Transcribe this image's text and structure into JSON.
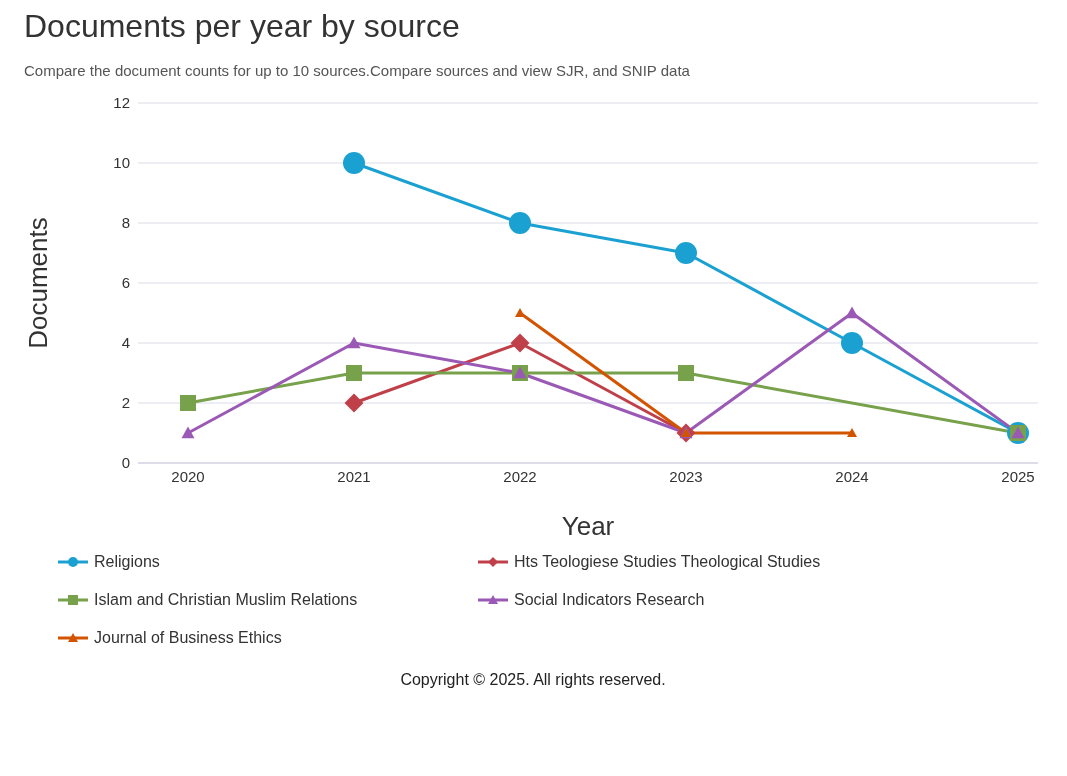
{
  "chart_data": {
    "type": "line",
    "title": "Documents per year by source",
    "subtitle": "Compare the document counts for up to 10 sources.Compare sources and view SJR, and SNIP data",
    "xlabel": "Year",
    "ylabel": "Documents",
    "categories": [
      "2020",
      "2021",
      "2022",
      "2023",
      "2024",
      "2025"
    ],
    "series": [
      {
        "name": "Religions",
        "color": "#1ba1d1",
        "marker": "circle",
        "values": [
          null,
          10,
          8,
          7,
          4,
          1
        ]
      },
      {
        "name": "Hts Teologiese Studies Theological Studies",
        "color": "#c0404a",
        "marker": "diamond",
        "values": [
          null,
          2,
          4,
          1,
          null,
          null
        ]
      },
      {
        "name": "Islam and Christian Muslim Relations",
        "color": "#77a14a",
        "marker": "square",
        "values": [
          2,
          3,
          3,
          3,
          null,
          1
        ]
      },
      {
        "name": "Social Indicators Research",
        "color": "#9b59b6",
        "marker": "triangle",
        "values": [
          1,
          4,
          3,
          1,
          5,
          1
        ]
      },
      {
        "name": "Journal of Business Ethics",
        "color": "#d35400",
        "marker": "triangle",
        "values": [
          null,
          null,
          5,
          1,
          1,
          null
        ]
      }
    ],
    "ylim": [
      0,
      12
    ],
    "yticks": [
      0,
      2,
      4,
      6,
      8,
      10,
      12
    ],
    "grid": "y",
    "legend": "bottom",
    "annotations": [
      "Copyright © 2025. All rights reserved."
    ]
  }
}
